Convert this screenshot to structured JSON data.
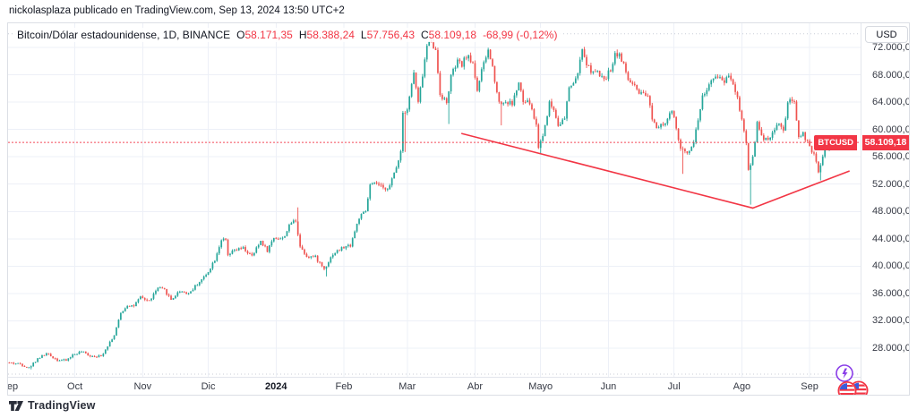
{
  "attribution": {
    "text": "nickolasplaza publicado en TradingView.com, Sep 13, 2024 13:50 UTC+2"
  },
  "brand": {
    "name": "TradingView",
    "logo_icon": "tradingview-logo"
  },
  "legend": {
    "title": "Bitcoin/Dólar estadounidense, 1D, BINANCE",
    "items": [
      {
        "k": "O",
        "v": "58.171,35"
      },
      {
        "k": "H",
        "v": "58.388,24"
      },
      {
        "k": "L",
        "v": "57.756,43"
      },
      {
        "k": "C",
        "v": "58.109,18"
      }
    ],
    "change": "-68,99 (-0,12%)"
  },
  "price_axis": {
    "currency": "USD",
    "ticks": [
      {
        "label": "72.000,00",
        "value": 72000
      },
      {
        "label": "68.000,00",
        "value": 68000
      },
      {
        "label": "64.000,00",
        "value": 64000
      },
      {
        "label": "60.000,00",
        "value": 60000
      },
      {
        "label": "56.000,00",
        "value": 56000
      },
      {
        "label": "52.000,00",
        "value": 52000
      },
      {
        "label": "48.000,00",
        "value": 48000
      },
      {
        "label": "44.000,00",
        "value": 44000
      },
      {
        "label": "40.000,00",
        "value": 40000
      },
      {
        "label": "36.000,00",
        "value": 36000
      },
      {
        "label": "32.000,00",
        "value": 32000
      },
      {
        "label": "28.000,00",
        "value": 28000
      }
    ],
    "badge": {
      "symbol": "BTCUSD",
      "price_label": "58.109,18",
      "value": 58109.18
    }
  },
  "time_axis": {
    "ticks": [
      {
        "label": "Sep",
        "day": 0
      },
      {
        "label": "Oct",
        "day": 30
      },
      {
        "label": "Nov",
        "day": 61
      },
      {
        "label": "Dic",
        "day": 91
      },
      {
        "label": "2024",
        "day": 122,
        "bold": true
      },
      {
        "label": "Feb",
        "day": 153
      },
      {
        "label": "Mar",
        "day": 182
      },
      {
        "label": "Abr",
        "day": 213
      },
      {
        "label": "Mayo",
        "day": 243
      },
      {
        "label": "Jun",
        "day": 274
      },
      {
        "label": "Jul",
        "day": 304
      },
      {
        "label": "Ago",
        "day": 335
      },
      {
        "label": "Sep",
        "day": 366
      }
    ]
  },
  "decorations": {
    "lightning_icon": "lightning-bolt-sticker",
    "flags_icon": "us-flag-circles-sticker",
    "lightning_color": "#8a3ee8",
    "flag_ring_color": "#f23645",
    "flag_canton_color": "#3b5bdb"
  },
  "chart_data": {
    "type": "candlestick",
    "symbol": "BTCUSD",
    "exchange": "BINANCE",
    "timeframe": "1D",
    "title": "Bitcoin/Dólar estadounidense, 1D, BINANCE",
    "currency": "USD",
    "current_price": 58109.18,
    "last_candle": {
      "o": 58171.35,
      "h": 58388.24,
      "l": 57756.43,
      "c": 58109.18
    },
    "day_zero_date": "2023-09-01",
    "days_total": 378,
    "ylim": [
      23810,
      75536
    ],
    "xlim": [
      -0.55,
      389.3
    ],
    "grid": true,
    "range_high_line": 74000,
    "range_low_line": 24200,
    "price_path_anchors": [
      [
        0,
        25900
      ],
      [
        6,
        25700
      ],
      [
        10,
        25100
      ],
      [
        14,
        26500
      ],
      [
        18,
        27200
      ],
      [
        23,
        26300
      ],
      [
        27,
        26200
      ],
      [
        30,
        27000
      ],
      [
        34,
        27500
      ],
      [
        38,
        26900
      ],
      [
        43,
        26800
      ],
      [
        46,
        28400
      ],
      [
        49,
        29900
      ],
      [
        52,
        33100
      ],
      [
        55,
        34300
      ],
      [
        58,
        34200
      ],
      [
        61,
        35400
      ],
      [
        65,
        34900
      ],
      [
        69,
        36800
      ],
      [
        72,
        36500
      ],
      [
        75,
        35100
      ],
      [
        79,
        36400
      ],
      [
        83,
        36000
      ],
      [
        87,
        37400
      ],
      [
        91,
        38700
      ],
      [
        95,
        41000
      ],
      [
        98,
        43900
      ],
      [
        100,
        43700
      ],
      [
        101,
        41500
      ],
      [
        104,
        42300
      ],
      [
        108,
        42600
      ],
      [
        112,
        41400
      ],
      [
        116,
        43700
      ],
      [
        119,
        42300
      ],
      [
        122,
        44200
      ],
      [
        126,
        44000
      ],
      [
        130,
        46400
      ],
      [
        132,
        46700
      ],
      [
        134,
        42900
      ],
      [
        137,
        41500
      ],
      [
        141,
        41300
      ],
      [
        145,
        39600
      ],
      [
        149,
        41800
      ],
      [
        153,
        42600
      ],
      [
        157,
        43100
      ],
      [
        161,
        47100
      ],
      [
        164,
        48000
      ],
      [
        166,
        51800
      ],
      [
        169,
        52100
      ],
      [
        172,
        51300
      ],
      [
        175,
        51700
      ],
      [
        178,
        54500
      ],
      [
        180,
        56900
      ],
      [
        181,
        62500
      ],
      [
        183,
        63100
      ],
      [
        186,
        68300
      ],
      [
        188,
        63800
      ],
      [
        190,
        68000
      ],
      [
        192,
        72200
      ],
      [
        194,
        73100
      ],
      [
        196,
        71400
      ],
      [
        198,
        65300
      ],
      [
        201,
        63800
      ],
      [
        203,
        67800
      ],
      [
        206,
        69900
      ],
      [
        208,
        69400
      ],
      [
        210,
        70800
      ],
      [
        213,
        69700
      ],
      [
        215,
        65800
      ],
      [
        217,
        68500
      ],
      [
        220,
        71600
      ],
      [
        222,
        69100
      ],
      [
        225,
        63900
      ],
      [
        228,
        64000
      ],
      [
        231,
        63800
      ],
      [
        234,
        66800
      ],
      [
        236,
        64000
      ],
      [
        239,
        63900
      ],
      [
        242,
        60600
      ],
      [
        243,
        57500
      ],
      [
        245,
        59100
      ],
      [
        248,
        63900
      ],
      [
        250,
        62900
      ],
      [
        252,
        60800
      ],
      [
        255,
        61500
      ],
      [
        257,
        66200
      ],
      [
        260,
        67100
      ],
      [
        263,
        71400
      ],
      [
        266,
        69000
      ],
      [
        268,
        68400
      ],
      [
        270,
        68300
      ],
      [
        272,
        67500
      ],
      [
        274,
        67750
      ],
      [
        276,
        68800
      ],
      [
        278,
        71100
      ],
      [
        280,
        71000
      ],
      [
        282,
        69300
      ],
      [
        284,
        67300
      ],
      [
        287,
        66200
      ],
      [
        289,
        65100
      ],
      [
        291,
        65000
      ],
      [
        293,
        64900
      ],
      [
        295,
        61800
      ],
      [
        297,
        60300
      ],
      [
        299,
        61000
      ],
      [
        301,
        60900
      ],
      [
        304,
        62700
      ],
      [
        306,
        60200
      ],
      [
        308,
        57000
      ],
      [
        311,
        56700
      ],
      [
        314,
        58200
      ],
      [
        318,
        64800
      ],
      [
        321,
        66500
      ],
      [
        325,
        67900
      ],
      [
        328,
        67000
      ],
      [
        330,
        68200
      ],
      [
        332,
        66800
      ],
      [
        334,
        64600
      ],
      [
        336,
        61400
      ],
      [
        338,
        58200
      ],
      [
        339,
        54000
      ],
      [
        341,
        56000
      ],
      [
        343,
        60900
      ],
      [
        345,
        58900
      ],
      [
        348,
        58700
      ],
      [
        350,
        59400
      ],
      [
        353,
        61100
      ],
      [
        355,
        59500
      ],
      [
        357,
        64100
      ],
      [
        360,
        63800
      ],
      [
        362,
        59000
      ],
      [
        364,
        59400
      ],
      [
        367,
        57300
      ],
      [
        369,
        56200
      ],
      [
        371,
        53900
      ],
      [
        374,
        57050
      ],
      [
        376,
        57650
      ],
      [
        377,
        58170
      ]
    ],
    "special_extremes": {
      "10": {
        "low": 24900
      },
      "52": {
        "high": 33500
      },
      "132": {
        "high": 48600
      },
      "145": {
        "low": 38500
      },
      "181": {
        "low": 56700
      },
      "194": {
        "high": 73750
      },
      "201": {
        "low": 60800
      },
      "225": {
        "low": 60600
      },
      "243": {
        "low": 56500
      },
      "263": {
        "high": 71950
      },
      "278": {
        "high": 71700
      },
      "308": {
        "low": 53500
      },
      "339": {
        "low": 49000
      },
      "371": {
        "low": 52550
      }
    },
    "trend_lines": [
      {
        "from_day": 207,
        "from_price": 59400,
        "to_day": 340,
        "to_price": 48500
      },
      {
        "from_day": 340,
        "from_price": 48500,
        "to_day": 384,
        "to_price": 53900
      }
    ],
    "colors": {
      "up": "#26a69a",
      "down": "#ef5350",
      "trend_line": "#f23645",
      "price_line": "#f23645",
      "badge_bg": "#f23645",
      "grid": "#edf0f7",
      "range_dotted": "#c9cdd7",
      "axis_text": "#363a45"
    }
  }
}
